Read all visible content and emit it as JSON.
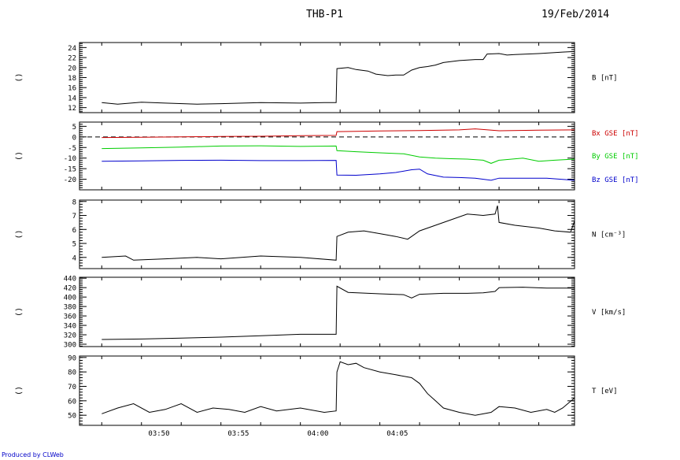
{
  "header": {
    "title": "THB-P1",
    "date": "19/Feb/2014"
  },
  "footer": {
    "credit": "Produced by CLWeb"
  },
  "chart_data": [
    {
      "type": "line",
      "ylabel": "B [nT]",
      "left_label": "()",
      "ylim": [
        11,
        25
      ],
      "yticks": [
        12,
        14,
        16,
        18,
        20,
        22,
        24
      ],
      "xlabels": [
        "03:50",
        "03:55",
        "04:00",
        "04:05"
      ],
      "series": [
        {
          "color": "#000000",
          "points": [
            [
              0,
              13.0
            ],
            [
              2,
              12.7
            ],
            [
              5,
              13.1
            ],
            [
              8,
              12.9
            ],
            [
              12,
              12.7
            ],
            [
              15,
              12.8
            ],
            [
              20,
              13.0
            ],
            [
              25,
              12.9
            ],
            [
              28,
              13.0
            ],
            [
              29.5,
              13.0
            ],
            [
              29.6,
              19.8
            ],
            [
              31,
              20.0
            ],
            [
              32,
              19.6
            ],
            [
              33.5,
              19.3
            ],
            [
              34.5,
              18.7
            ],
            [
              36,
              18.4
            ],
            [
              37,
              18.5
            ],
            [
              38,
              18.5
            ],
            [
              39,
              19.5
            ],
            [
              40,
              20.0
            ],
            [
              41,
              20.2
            ],
            [
              42,
              20.5
            ],
            [
              43,
              21.0
            ],
            [
              45,
              21.4
            ],
            [
              46,
              21.5
            ],
            [
              47,
              21.6
            ],
            [
              48,
              21.6
            ],
            [
              48.5,
              22.7
            ],
            [
              50,
              22.8
            ],
            [
              51,
              22.5
            ],
            [
              52,
              22.6
            ],
            [
              55,
              22.8
            ],
            [
              58,
              23.1
            ],
            [
              59.5,
              23.2
            ]
          ]
        }
      ]
    },
    {
      "type": "line",
      "left_label": "()",
      "ylim": [
        -25,
        7
      ],
      "yticks": [
        5,
        0,
        -5,
        -10,
        -15,
        -20
      ],
      "xlabels": [
        "03:50",
        "03:55",
        "04:00",
        "04:05"
      ],
      "zero_line": true,
      "series": [
        {
          "name": "Bx GSE [nT]",
          "color": "#cc0000",
          "points": [
            [
              0,
              -0.3
            ],
            [
              5,
              -0.2
            ],
            [
              10,
              0.0
            ],
            [
              15,
              0.2
            ],
            [
              20,
              0.3
            ],
            [
              25,
              0.6
            ],
            [
              29.5,
              0.7
            ],
            [
              29.6,
              2.5
            ],
            [
              32,
              2.6
            ],
            [
              35,
              2.8
            ],
            [
              40,
              3.0
            ],
            [
              45,
              3.3
            ],
            [
              47,
              3.8
            ],
            [
              50,
              2.9
            ],
            [
              55,
              3.2
            ],
            [
              59.5,
              3.3
            ]
          ]
        },
        {
          "name": "By GSE [nT]",
          "color": "#00cc00",
          "points": [
            [
              0,
              -5.5
            ],
            [
              5,
              -5.2
            ],
            [
              10,
              -4.8
            ],
            [
              15,
              -4.3
            ],
            [
              20,
              -4.2
            ],
            [
              25,
              -4.5
            ],
            [
              29.5,
              -4.3
            ],
            [
              29.6,
              -6.5
            ],
            [
              32,
              -7.0
            ],
            [
              35,
              -7.5
            ],
            [
              38,
              -8.0
            ],
            [
              40,
              -9.5
            ],
            [
              42,
              -10.0
            ],
            [
              44,
              -10.3
            ],
            [
              46,
              -10.5
            ],
            [
              48,
              -11.0
            ],
            [
              49,
              -12.5
            ],
            [
              50,
              -11.0
            ],
            [
              53,
              -10.0
            ],
            [
              55,
              -11.5
            ],
            [
              57,
              -11.0
            ],
            [
              59.5,
              -10.5
            ]
          ]
        },
        {
          "name": "Bz GSE [nT]",
          "color": "#0000cc",
          "points": [
            [
              0,
              -11.5
            ],
            [
              5,
              -11.3
            ],
            [
              10,
              -11.1
            ],
            [
              15,
              -11.0
            ],
            [
              20,
              -11.2
            ],
            [
              25,
              -11.2
            ],
            [
              29.5,
              -11.1
            ],
            [
              29.6,
              -18.0
            ],
            [
              32,
              -18.1
            ],
            [
              35,
              -17.5
            ],
            [
              37,
              -16.8
            ],
            [
              39,
              -15.5
            ],
            [
              40,
              -15.2
            ],
            [
              41,
              -17.5
            ],
            [
              43,
              -19.0
            ],
            [
              45,
              -19.2
            ],
            [
              47,
              -19.5
            ],
            [
              49,
              -20.5
            ],
            [
              50,
              -19.5
            ],
            [
              53,
              -19.5
            ],
            [
              56,
              -19.5
            ],
            [
              59.5,
              -20.5
            ]
          ]
        }
      ]
    },
    {
      "type": "line",
      "ylabel": "N [cm^-3]",
      "left_label": "()",
      "ylim": [
        3.2,
        8.1
      ],
      "yticks": [
        4,
        5,
        6,
        7,
        8
      ],
      "xlabels": [
        "03:50",
        "03:55",
        "04:00",
        "04:05"
      ],
      "series": [
        {
          "color": "#000000",
          "points": [
            [
              0,
              4.0
            ],
            [
              3,
              4.1
            ],
            [
              4,
              3.8
            ],
            [
              8,
              3.9
            ],
            [
              12,
              4.0
            ],
            [
              15,
              3.9
            ],
            [
              20,
              4.1
            ],
            [
              25,
              4.0
            ],
            [
              29.5,
              3.8
            ],
            [
              29.6,
              5.5
            ],
            [
              31,
              5.8
            ],
            [
              33,
              5.9
            ],
            [
              35,
              5.7
            ],
            [
              37,
              5.5
            ],
            [
              38.5,
              5.3
            ],
            [
              40,
              5.9
            ],
            [
              42,
              6.3
            ],
            [
              44,
              6.7
            ],
            [
              46,
              7.1
            ],
            [
              48,
              7.0
            ],
            [
              49.5,
              7.1
            ],
            [
              49.8,
              7.7
            ],
            [
              50,
              6.5
            ],
            [
              52,
              6.3
            ],
            [
              55,
              6.1
            ],
            [
              57,
              5.9
            ],
            [
              59,
              5.8
            ],
            [
              59.5,
              6.6
            ]
          ]
        }
      ]
    },
    {
      "type": "line",
      "ylabel": "V [km/s]",
      "left_label": "()",
      "ylim": [
        295,
        442
      ],
      "yticks": [
        300,
        320,
        340,
        360,
        380,
        400,
        420,
        440
      ],
      "xlabels": [
        "03:50",
        "03:55",
        "04:00",
        "04:05"
      ],
      "series": [
        {
          "color": "#000000",
          "points": [
            [
              0,
              310
            ],
            [
              5,
              311
            ],
            [
              10,
              313
            ],
            [
              15,
              315
            ],
            [
              20,
              318
            ],
            [
              25,
              321
            ],
            [
              29.5,
              321
            ],
            [
              29.6,
              423
            ],
            [
              31,
              410
            ],
            [
              35,
              407
            ],
            [
              38,
              405
            ],
            [
              39,
              398
            ],
            [
              40,
              406
            ],
            [
              43,
              408
            ],
            [
              46,
              408
            ],
            [
              48,
              409
            ],
            [
              49.5,
              412
            ],
            [
              50,
              420
            ],
            [
              53,
              421
            ],
            [
              56,
              419
            ],
            [
              59.5,
              419
            ]
          ]
        }
      ]
    },
    {
      "type": "line",
      "ylabel": "T [eV]",
      "left_label": "()",
      "ylim": [
        43,
        91
      ],
      "yticks": [
        50,
        60,
        70,
        80,
        90
      ],
      "xlabels": [
        "03:50",
        "03:55",
        "04:00",
        "04:05"
      ],
      "series": [
        {
          "color": "#000000",
          "points": [
            [
              0,
              51
            ],
            [
              2,
              55
            ],
            [
              4,
              58
            ],
            [
              6,
              52
            ],
            [
              8,
              54
            ],
            [
              10,
              58
            ],
            [
              12,
              52
            ],
            [
              14,
              55
            ],
            [
              16,
              54
            ],
            [
              18,
              52
            ],
            [
              20,
              56
            ],
            [
              22,
              53
            ],
            [
              25,
              55
            ],
            [
              28,
              52
            ],
            [
              29.5,
              53
            ],
            [
              29.6,
              80
            ],
            [
              30,
              87
            ],
            [
              31,
              85
            ],
            [
              32,
              86
            ],
            [
              33,
              83
            ],
            [
              35,
              80
            ],
            [
              37,
              78
            ],
            [
              39,
              76
            ],
            [
              40,
              72
            ],
            [
              41,
              65
            ],
            [
              42,
              60
            ],
            [
              43,
              55
            ],
            [
              45,
              52
            ],
            [
              47,
              50
            ],
            [
              49,
              52
            ],
            [
              50,
              56
            ],
            [
              52,
              55
            ],
            [
              54,
              52
            ],
            [
              56,
              54
            ],
            [
              57,
              52
            ],
            [
              58,
              55
            ],
            [
              59.5,
              62
            ]
          ]
        }
      ]
    }
  ]
}
